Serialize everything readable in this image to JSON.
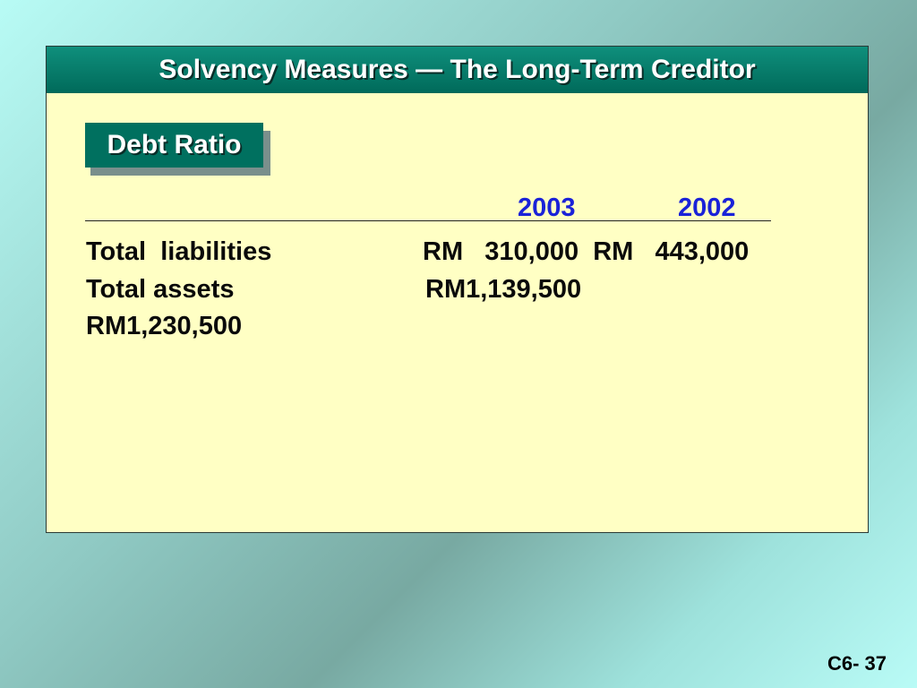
{
  "slide": {
    "title": "Solvency Measures — The Long-Term Creditor",
    "section_badge": "Debt Ratio",
    "columns": [
      "2003",
      "2002"
    ],
    "rows": [
      {
        "label": "Total  liabilities",
        "values": "RM   310,000  RM   443,000"
      },
      {
        "label": "Total assets",
        "values": "RM1,139,500"
      },
      {
        "label": "RM1,230,500",
        "values": ""
      }
    ],
    "page_number": "C6- 37"
  }
}
